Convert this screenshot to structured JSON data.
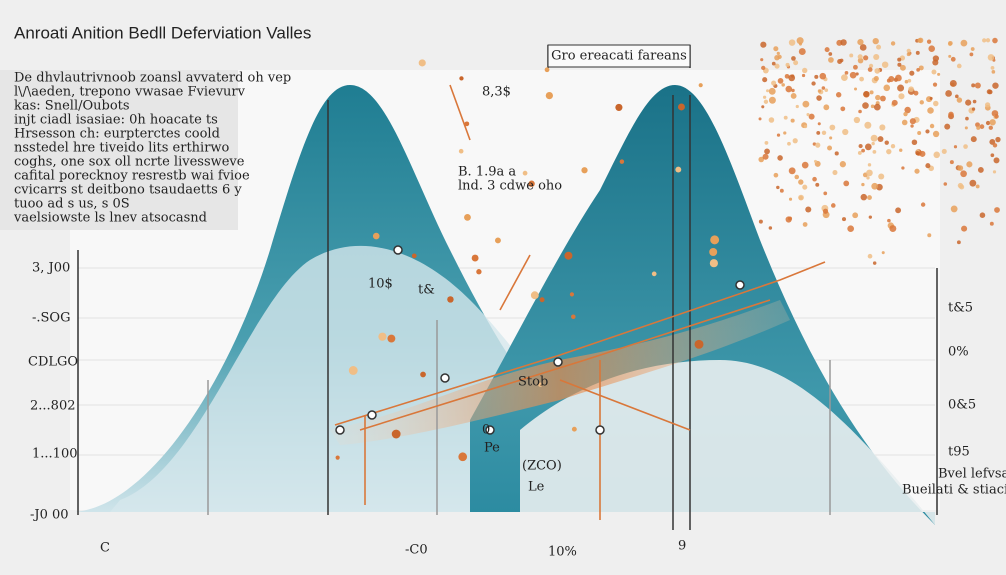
{
  "title": "Anroati Anition Bedll Deferviation Valles",
  "note": [
    "De dhvlautrivnoob zoansl avvaterd oh vep",
    "l\\/\\aeden, trepono vwasae Fvievurv",
    "kas: Snell/Oubots",
    "injt ciadl isasiae: 0h hoacate ts",
    "Hrsesson ch: eurpterctes coold",
    "nsstedel hre tiveido lits erthirwo",
    "coghs, one sox oll ncrte livessweve",
    "cafital porecknoy resrestb wai fvioe",
    "cvicarrs st deitbono tsaudaetts 6 y",
    "tuoo ad s us, s 0S",
    "vaelsiowste ls lnev atsocasnd"
  ],
  "legend_box": "Gro ereacati fareans",
  "left_labels": [
    "3, J00",
    "-.SOG",
    "CDLGO",
    "2...802",
    "1...100",
    "-J0 00"
  ],
  "right_labels": [
    "t&5",
    "0%",
    "0&5",
    "t95"
  ],
  "bottom_labels": [
    "C",
    "-C0",
    "10%",
    "9"
  ],
  "annotations": [
    "10$",
    "t&",
    "8,3$",
    "B. 1.9a a",
    "lnd. 3 cdwe oho",
    "Stob",
    "0",
    "Pe",
    "(ZCO)",
    "Le",
    "Bvel lefvsans",
    "Bueilati & stiacie te"
  ]
}
